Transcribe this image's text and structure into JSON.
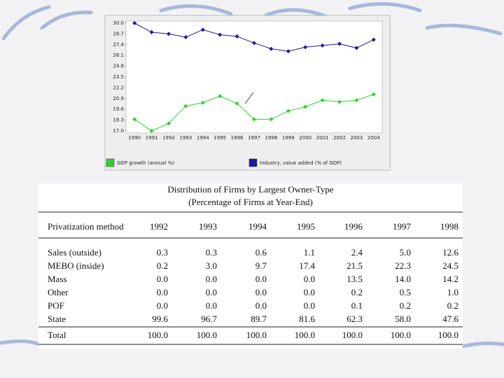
{
  "chart_data": {
    "type": "line",
    "categories": [
      "1990",
      "1991",
      "1992",
      "1993",
      "1994",
      "1995",
      "1996",
      "1997",
      "1998",
      "1999",
      "2000",
      "2001",
      "2002",
      "2003",
      "2004"
    ],
    "series": [
      {
        "name": "GDP growth (annual %)",
        "color": "#2fd12f",
        "values": [
          18.4,
          17.0,
          17.9,
          20.0,
          20.4,
          21.2,
          20.3,
          18.4,
          18.4,
          19.4,
          19.9,
          20.7,
          20.5,
          20.7,
          21.4
        ]
      },
      {
        "name": "Industry, value added (% of GDP)",
        "color": "#1a1a9a",
        "values": [
          30.0,
          28.9,
          28.7,
          28.3,
          29.2,
          28.6,
          28.4,
          27.6,
          26.9,
          26.6,
          27.1,
          27.3,
          27.5,
          27.0,
          28.0
        ]
      }
    ],
    "ylim": [
      17.0,
      30.0
    ],
    "yticks": [
      {
        "value": 30.0,
        "label": "30.0"
      },
      28.7,
      27.4,
      26.1,
      24.8,
      23.5,
      22.2,
      20.9,
      19.6,
      18.3,
      {
        "value": 17.0,
        "label": "17.0"
      }
    ],
    "legend": "bottom"
  },
  "table": {
    "title": "Distribution of Firms by Largest Owner-Type",
    "subtitle": "(Percentage of Firms at Year-End)",
    "header": [
      "Privatization method",
      "1992",
      "1993",
      "1994",
      "1995",
      "1996",
      "1997",
      "1998"
    ],
    "rows": [
      [
        "Sales (outside)",
        "0.3",
        "0.3",
        "0.6",
        "1.1",
        "2.4",
        "5.0",
        "12.6"
      ],
      [
        "MEBO (inside)",
        "0.2",
        "3.0",
        "9.7",
        "17.4",
        "21.5",
        "22.3",
        "24.5"
      ],
      [
        "Mass",
        "0.0",
        "0.0",
        "0.0",
        "0.0",
        "13.5",
        "14.0",
        "14.2"
      ],
      [
        "Other",
        "0.0",
        "0.0",
        "0.0",
        "0.0",
        "0.2",
        "0.5",
        "1.0"
      ],
      [
        "POF",
        "0.0",
        "0.0",
        "0.0",
        "0.0",
        "0.1",
        "0.2",
        "0.2"
      ],
      [
        "State",
        "99.6",
        "96.7",
        "89.7",
        "81.6",
        "62.3",
        "58.0",
        "47.6"
      ]
    ],
    "total": [
      "Total",
      "100.0",
      "100.0",
      "100.0",
      "100.0",
      "100.0",
      "100.0",
      "100.0"
    ]
  }
}
